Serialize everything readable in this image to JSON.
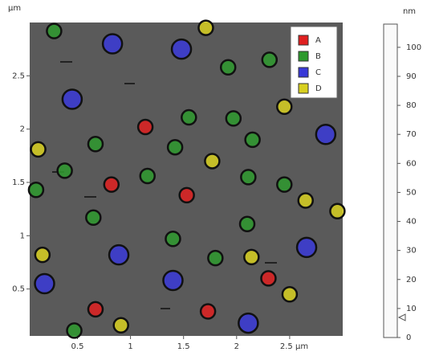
{
  "chart_data": {
    "type": "scatter",
    "y_unit": "µm",
    "xlim": [
      0.05,
      3.0
    ],
    "ylim": [
      0.06,
      3.0
    ],
    "xticks": [
      0.5,
      1.0,
      1.5,
      2.0,
      {
        "value": 2.5,
        "label": "2.5 µm"
      }
    ],
    "yticks": [
      0.5,
      1.0,
      1.5,
      2.0,
      2.5
    ],
    "legend": "top-right",
    "series": [
      {
        "name": "A",
        "color": "#e02020",
        "x": [
          1.14,
          0.82,
          1.53,
          0.67,
          1.73,
          2.3
        ],
        "values": [
          2.02,
          1.48,
          1.38,
          0.31,
          0.29,
          0.6
        ]
      },
      {
        "name": "B",
        "color": "#2e9a2e",
        "x": [
          0.28,
          2.31,
          1.92,
          1.55,
          1.97,
          0.67,
          1.42,
          2.15,
          0.38,
          1.16,
          2.11,
          2.45,
          0.11,
          0.65,
          2.1,
          1.4,
          1.8,
          0.47
        ],
        "values": [
          2.92,
          2.65,
          2.58,
          2.11,
          2.1,
          1.86,
          1.83,
          1.9,
          1.61,
          1.56,
          1.55,
          1.48,
          1.43,
          1.17,
          1.11,
          0.97,
          0.79,
          0.11
        ]
      },
      {
        "name": "C",
        "color": "#3a3ad8",
        "x": [
          0.83,
          1.48,
          0.45,
          2.84,
          0.89,
          2.66,
          1.4,
          0.19,
          2.11
        ],
        "values": [
          2.8,
          2.75,
          2.28,
          1.95,
          0.82,
          0.89,
          0.58,
          0.55,
          0.18
        ]
      },
      {
        "name": "D",
        "color": "#d8d020",
        "x": [
          1.71,
          2.45,
          0.13,
          1.77,
          2.65,
          2.95,
          0.17,
          2.14,
          2.5,
          0.91
        ],
        "values": [
          2.95,
          2.21,
          1.81,
          1.7,
          1.33,
          1.23,
          0.82,
          0.8,
          0.45,
          0.16
        ]
      }
    ],
    "colorbar": {
      "label": "nm",
      "lim": [
        0,
        108
      ],
      "ticks": [
        0,
        10,
        20,
        30,
        40,
        50,
        60,
        70,
        80,
        90,
        100
      ]
    }
  }
}
